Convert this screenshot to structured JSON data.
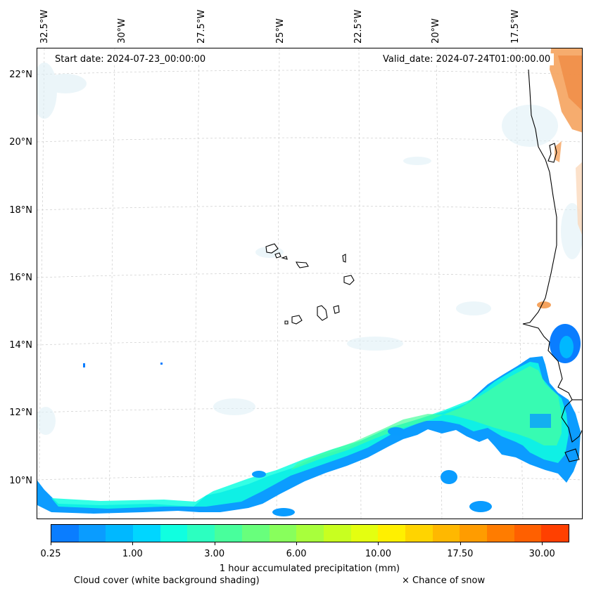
{
  "map": {
    "start_date": "Start date: 2024-07-23_00:00:00",
    "valid_date": "Valid_date: 2024-07-24T01:00:00.00",
    "lon_labels": [
      "32.5°W",
      "30°W",
      "27.5°W",
      "25°W",
      "22.5°W",
      "20°W",
      "17.5°W"
    ],
    "lat_labels": [
      "22°N",
      "20°N",
      "18°N",
      "16°N",
      "14°N",
      "12°N",
      "10°N"
    ],
    "extent": {
      "lon_min": -32.6,
      "lon_max": -16.0,
      "lat_min": 8.9,
      "lat_max": 22.8
    }
  },
  "colorbar": {
    "label": "1 hour accumulated precipitation (mm)",
    "ticks": [
      "0.25",
      "1.00",
      "3.00",
      "6.00",
      "10.00",
      "17.50",
      "30.00"
    ],
    "colors": [
      "#0a7dff",
      "#0a9cff",
      "#00b8ff",
      "#00d6ff",
      "#10ffe0",
      "#2cffc0",
      "#48ff9c",
      "#68ff7c",
      "#88ff5c",
      "#a8ff3c",
      "#c8ff20",
      "#e4ff10",
      "#fff000",
      "#ffd400",
      "#ffb800",
      "#ff9c00",
      "#ff7c00",
      "#ff6000",
      "#ff4000"
    ]
  },
  "legend": {
    "cloud_cover": "Cloud cover (white background shading)",
    "snow": "× Chance of snow"
  }
}
